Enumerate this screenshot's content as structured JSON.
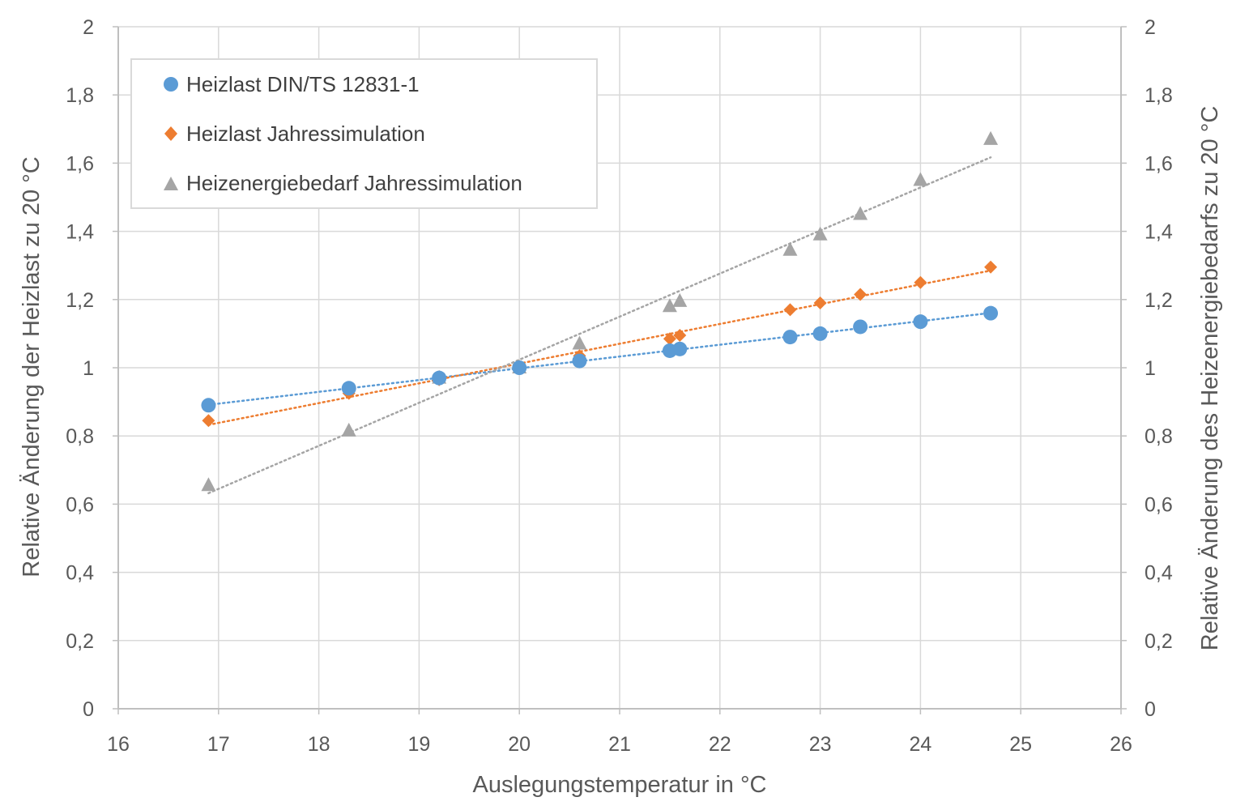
{
  "chart_data": {
    "type": "scatter",
    "xlabel": "Auslegungstemperatur  in °C",
    "ylabel_left": "Relative Änderung der Heizlast zu 20 °C",
    "ylabel_right": "Relative Änderung des Heizenergiebedarfs zu 20 °C",
    "xlim": [
      16,
      26
    ],
    "xticks": [
      "16",
      "17",
      "18",
      "19",
      "20",
      "21",
      "22",
      "23",
      "24",
      "25",
      "26"
    ],
    "ylim": [
      0,
      2
    ],
    "yticks": [
      "0",
      "0,2",
      "0,4",
      "0,6",
      "0,8",
      "1",
      "1,2",
      "1,4",
      "1,6",
      "1,8",
      "2"
    ],
    "grid": true,
    "legend_position": "top-left",
    "trendlines": "linear, dotted",
    "series": [
      {
        "name": "Heizlast DIN/TS 12831-1",
        "marker": "circle",
        "color": "#5B9BD5",
        "axis": "left",
        "x": [
          16.9,
          18.3,
          19.2,
          20.0,
          20.6,
          21.5,
          21.6,
          22.7,
          23.0,
          23.4,
          24.0,
          24.7
        ],
        "y": [
          0.89,
          0.94,
          0.97,
          1.0,
          1.02,
          1.05,
          1.055,
          1.09,
          1.1,
          1.12,
          1.135,
          1.16
        ]
      },
      {
        "name": "Heizlast Jahressimulation",
        "marker": "diamond",
        "color": "#ED7D31",
        "axis": "left",
        "x": [
          16.9,
          18.3,
          19.2,
          20.0,
          20.6,
          21.5,
          21.6,
          22.7,
          23.0,
          23.4,
          24.0,
          24.7
        ],
        "y": [
          0.845,
          0.925,
          0.965,
          1.0,
          1.035,
          1.085,
          1.095,
          1.17,
          1.19,
          1.215,
          1.25,
          1.295
        ]
      },
      {
        "name": "Heizenergiebedarf Jahressimulation",
        "marker": "triangle",
        "color": "#A5A5A5",
        "axis": "right",
        "x": [
          16.9,
          18.3,
          19.2,
          20.0,
          20.6,
          21.5,
          21.6,
          22.7,
          23.0,
          23.4,
          24.0,
          24.7
        ],
        "y": [
          0.655,
          0.815,
          0.97,
          1.0,
          1.07,
          1.18,
          1.195,
          1.345,
          1.39,
          1.45,
          1.55,
          1.67
        ]
      }
    ]
  }
}
